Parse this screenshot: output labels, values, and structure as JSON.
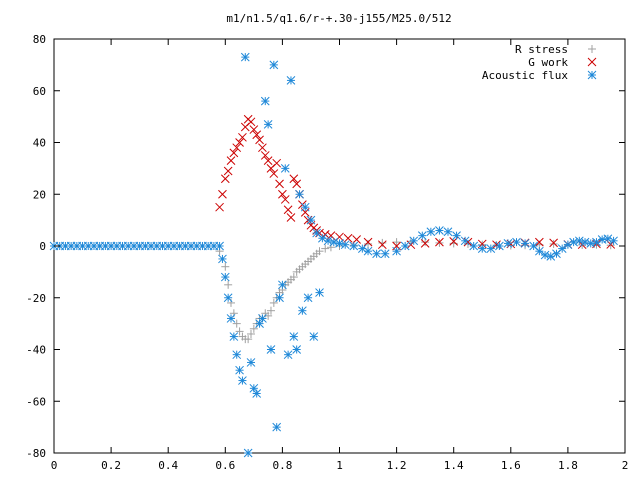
{
  "chart_data": {
    "type": "scatter",
    "title": "m1/n1.5/q1.6/r-+.30-j155/M25.0/512",
    "xlabel": "",
    "ylabel": "",
    "xlim": [
      0,
      2
    ],
    "ylim": [
      -80,
      80
    ],
    "xticks": [
      "0",
      "0.2",
      "0.4",
      "0.6",
      "0.8",
      "1",
      "1.2",
      "1.4",
      "1.6",
      "1.8",
      "2"
    ],
    "yticks": [
      "80",
      "60",
      "40",
      "20",
      "0",
      "-20",
      "-40",
      "-60",
      "-80"
    ],
    "grid": false,
    "legend_position": "top-right",
    "series": [
      {
        "name": "R stress",
        "marker": "plus",
        "color": "#a0a0a0",
        "points": [
          [
            0.58,
            -2
          ],
          [
            0.6,
            -8
          ],
          [
            0.61,
            -15
          ],
          [
            0.62,
            -22
          ],
          [
            0.63,
            -26
          ],
          [
            0.64,
            -30
          ],
          [
            0.65,
            -33
          ],
          [
            0.66,
            -35
          ],
          [
            0.67,
            -36
          ],
          [
            0.68,
            -36
          ],
          [
            0.69,
            -34
          ],
          [
            0.7,
            -32
          ],
          [
            0.71,
            -30
          ],
          [
            0.72,
            -28
          ],
          [
            0.73,
            -28
          ],
          [
            0.74,
            -26
          ],
          [
            0.75,
            -27
          ],
          [
            0.76,
            -25
          ],
          [
            0.77,
            -22
          ],
          [
            0.78,
            -20
          ],
          [
            0.79,
            -18
          ],
          [
            0.8,
            -17
          ],
          [
            0.81,
            -15
          ],
          [
            0.82,
            -14
          ],
          [
            0.83,
            -13
          ],
          [
            0.84,
            -12
          ],
          [
            0.85,
            -10
          ],
          [
            0.86,
            -9
          ],
          [
            0.87,
            -8
          ],
          [
            0.88,
            -7
          ],
          [
            0.89,
            -6
          ],
          [
            0.9,
            -5
          ],
          [
            0.91,
            -4
          ],
          [
            0.92,
            -3
          ],
          [
            0.93,
            -2
          ],
          [
            0.95,
            -1
          ],
          [
            0.97,
            -0.5
          ],
          [
            1.0,
            0
          ],
          [
            1.05,
            0.3
          ],
          [
            1.1,
            0.8
          ],
          [
            1.15,
            1.2
          ],
          [
            1.2,
            1.5
          ],
          [
            1.25,
            1.8
          ],
          [
            1.3,
            1.5
          ],
          [
            1.35,
            1.2
          ],
          [
            1.4,
            1
          ],
          [
            1.45,
            0.8
          ],
          [
            1.5,
            0.5
          ],
          [
            1.55,
            0.3
          ],
          [
            1.6,
            0.2
          ],
          [
            1.65,
            0.3
          ],
          [
            1.7,
            0.5
          ],
          [
            1.75,
            0.8
          ],
          [
            1.8,
            0.6
          ],
          [
            1.85,
            0.4
          ],
          [
            1.9,
            0.5
          ],
          [
            1.95,
            0.3
          ]
        ]
      },
      {
        "name": "G work",
        "marker": "cross",
        "color": "#cc0000",
        "points": [
          [
            0.58,
            15
          ],
          [
            0.59,
            20
          ],
          [
            0.6,
            26
          ],
          [
            0.61,
            29
          ],
          [
            0.62,
            33
          ],
          [
            0.63,
            36
          ],
          [
            0.64,
            38
          ],
          [
            0.65,
            40
          ],
          [
            0.66,
            42
          ],
          [
            0.67,
            46
          ],
          [
            0.68,
            49
          ],
          [
            0.69,
            48
          ],
          [
            0.7,
            45
          ],
          [
            0.71,
            43
          ],
          [
            0.72,
            41
          ],
          [
            0.73,
            38
          ],
          [
            0.74,
            35
          ],
          [
            0.75,
            33
          ],
          [
            0.76,
            30
          ],
          [
            0.77,
            28
          ],
          [
            0.78,
            32
          ],
          [
            0.79,
            24
          ],
          [
            0.8,
            20
          ],
          [
            0.81,
            18
          ],
          [
            0.82,
            14
          ],
          [
            0.83,
            11
          ],
          [
            0.84,
            26
          ],
          [
            0.85,
            24
          ],
          [
            0.86,
            20
          ],
          [
            0.87,
            16
          ],
          [
            0.88,
            13
          ],
          [
            0.89,
            10
          ],
          [
            0.9,
            8
          ],
          [
            0.91,
            7
          ],
          [
            0.92,
            6
          ],
          [
            0.93,
            5
          ],
          [
            0.95,
            4.5
          ],
          [
            0.97,
            4
          ],
          [
            1.0,
            3.5
          ],
          [
            1.03,
            3
          ],
          [
            1.06,
            2.5
          ],
          [
            1.1,
            1.5
          ],
          [
            1.15,
            0.5
          ],
          [
            1.2,
            0
          ],
          [
            1.25,
            0.5
          ],
          [
            1.3,
            1
          ],
          [
            1.35,
            1.5
          ],
          [
            1.4,
            1.8
          ],
          [
            1.45,
            1.5
          ],
          [
            1.5,
            0.8
          ],
          [
            1.55,
            0.5
          ],
          [
            1.6,
            0.8
          ],
          [
            1.65,
            1.2
          ],
          [
            1.7,
            1.5
          ],
          [
            1.75,
            1.2
          ],
          [
            1.8,
            0.6
          ],
          [
            1.85,
            0.5
          ],
          [
            1.9,
            0.8
          ],
          [
            1.95,
            0.6
          ]
        ]
      },
      {
        "name": "Acoustic flux",
        "marker": "star",
        "color": "#1e88d8",
        "points": [
          [
            0.0,
            0
          ],
          [
            0.02,
            0
          ],
          [
            0.04,
            0
          ],
          [
            0.06,
            0
          ],
          [
            0.08,
            0
          ],
          [
            0.1,
            0
          ],
          [
            0.12,
            0
          ],
          [
            0.14,
            0
          ],
          [
            0.16,
            0
          ],
          [
            0.18,
            0
          ],
          [
            0.2,
            0
          ],
          [
            0.22,
            0
          ],
          [
            0.24,
            0
          ],
          [
            0.26,
            0
          ],
          [
            0.28,
            0
          ],
          [
            0.3,
            0
          ],
          [
            0.32,
            0
          ],
          [
            0.34,
            0
          ],
          [
            0.36,
            0
          ],
          [
            0.38,
            0
          ],
          [
            0.4,
            0
          ],
          [
            0.42,
            0
          ],
          [
            0.44,
            0
          ],
          [
            0.46,
            0
          ],
          [
            0.48,
            0
          ],
          [
            0.5,
            0
          ],
          [
            0.52,
            0
          ],
          [
            0.54,
            0
          ],
          [
            0.56,
            0
          ],
          [
            0.58,
            0
          ],
          [
            0.59,
            -5
          ],
          [
            0.6,
            -12
          ],
          [
            0.61,
            -20
          ],
          [
            0.62,
            -28
          ],
          [
            0.63,
            -35
          ],
          [
            0.64,
            -42
          ],
          [
            0.65,
            -48
          ],
          [
            0.66,
            -52
          ],
          [
            0.67,
            73
          ],
          [
            0.68,
            -80
          ],
          [
            0.69,
            -45
          ],
          [
            0.7,
            -55
          ],
          [
            0.71,
            -57
          ],
          [
            0.72,
            -30
          ],
          [
            0.73,
            -28
          ],
          [
            0.74,
            56
          ],
          [
            0.75,
            47
          ],
          [
            0.76,
            -40
          ],
          [
            0.77,
            70
          ],
          [
            0.78,
            -70
          ],
          [
            0.79,
            -20
          ],
          [
            0.8,
            -15
          ],
          [
            0.81,
            30
          ],
          [
            0.82,
            -42
          ],
          [
            0.83,
            64
          ],
          [
            0.84,
            -35
          ],
          [
            0.85,
            -40
          ],
          [
            0.86,
            20
          ],
          [
            0.87,
            -25
          ],
          [
            0.88,
            15
          ],
          [
            0.89,
            -20
          ],
          [
            0.9,
            10
          ],
          [
            0.91,
            -35
          ],
          [
            0.92,
            5
          ],
          [
            0.93,
            -18
          ],
          [
            0.94,
            3
          ],
          [
            0.96,
            2
          ],
          [
            0.98,
            1.5
          ],
          [
            1.0,
            1
          ],
          [
            1.02,
            0.5
          ],
          [
            1.05,
            0
          ],
          [
            1.08,
            -1
          ],
          [
            1.1,
            -2
          ],
          [
            1.13,
            -3
          ],
          [
            1.16,
            -3
          ],
          [
            1.2,
            -2
          ],
          [
            1.23,
            0
          ],
          [
            1.26,
            2
          ],
          [
            1.29,
            4
          ],
          [
            1.32,
            5.5
          ],
          [
            1.35,
            6
          ],
          [
            1.38,
            5.5
          ],
          [
            1.41,
            4
          ],
          [
            1.44,
            2
          ],
          [
            1.47,
            0
          ],
          [
            1.5,
            -1
          ],
          [
            1.53,
            -1
          ],
          [
            1.56,
            0
          ],
          [
            1.59,
            1
          ],
          [
            1.62,
            1.5
          ],
          [
            1.65,
            1
          ],
          [
            1.68,
            0
          ],
          [
            1.7,
            -2
          ],
          [
            1.72,
            -3.5
          ],
          [
            1.74,
            -4
          ],
          [
            1.76,
            -3
          ],
          [
            1.78,
            -1
          ],
          [
            1.8,
            0.5
          ],
          [
            1.82,
            1.5
          ],
          [
            1.84,
            2
          ],
          [
            1.86,
            1.5
          ],
          [
            1.88,
            1
          ],
          [
            1.9,
            1.5
          ],
          [
            1.92,
            2.5
          ],
          [
            1.94,
            2.8
          ],
          [
            1.96,
            2
          ]
        ]
      }
    ]
  }
}
